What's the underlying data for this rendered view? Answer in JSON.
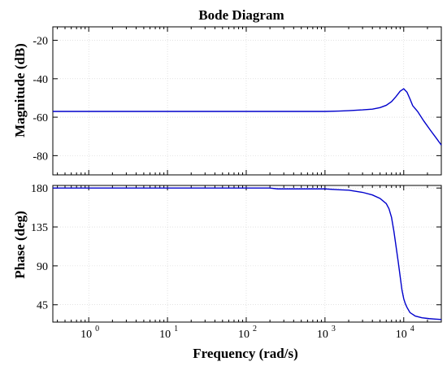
{
  "chart_data": {
    "type": "line",
    "title": "Bode Diagram",
    "xlabel": "Frequency  (rad/s)",
    "x_scale": "log",
    "xlim": [
      0.35,
      30000
    ],
    "x_ticks": [
      {
        "value": 1,
        "exp": "0"
      },
      {
        "value": 10,
        "exp": "1"
      },
      {
        "value": 100,
        "exp": "2"
      },
      {
        "value": 1000,
        "exp": "3"
      },
      {
        "value": 10000,
        "exp": "4"
      }
    ],
    "grid": true,
    "line_color": "#0000cc",
    "subplots": [
      {
        "id": "magnitude",
        "ylabel": "Magnitude (dB)",
        "ylim": [
          -90,
          -13
        ],
        "y_ticks": [
          -20,
          -40,
          -60,
          -80
        ],
        "series": [
          {
            "x": [
              0.35,
              1,
              10,
              100,
              1000,
              1500,
              2000,
              3000,
              4000,
              5000,
              6000,
              7000,
              8000,
              9000,
              10000,
              11000,
              12000,
              13000,
              15000,
              18000,
              22000,
              26000,
              30000
            ],
            "y": [
              -57,
              -57,
              -57,
              -57,
              -57,
              -56.8,
              -56.6,
              -56.2,
              -55.8,
              -55,
              -53.8,
              -51.9,
              -49.2,
              -46.5,
              -45.2,
              -47,
              -50.5,
              -54,
              -57,
              -62,
              -67,
              -71,
              -74.5
            ]
          }
        ]
      },
      {
        "id": "phase",
        "ylabel": "Phase (deg)",
        "ylim": [
          25,
          183
        ],
        "y_ticks": [
          180,
          135,
          90,
          45
        ],
        "series": [
          {
            "x": [
              0.35,
              1,
              10,
              100,
              200,
              250,
              1000,
              1500,
              2000,
              3000,
              4000,
              5000,
              6000,
              6500,
              7000,
              7500,
              8000,
              8500,
              9000,
              9500,
              10000,
              10500,
              11000,
              12000,
              14000,
              17000,
              21000,
              25000,
              30000
            ],
            "y": [
              180,
              180,
              180,
              180,
              180,
              179,
              179,
              178,
              177.5,
              175,
              172,
              168,
              162,
              156,
              146,
              130,
              112,
              95,
              78,
              62,
              52,
              46,
              42,
              36,
              32,
              30,
              29,
              28.5,
              28
            ]
          }
        ]
      }
    ]
  }
}
